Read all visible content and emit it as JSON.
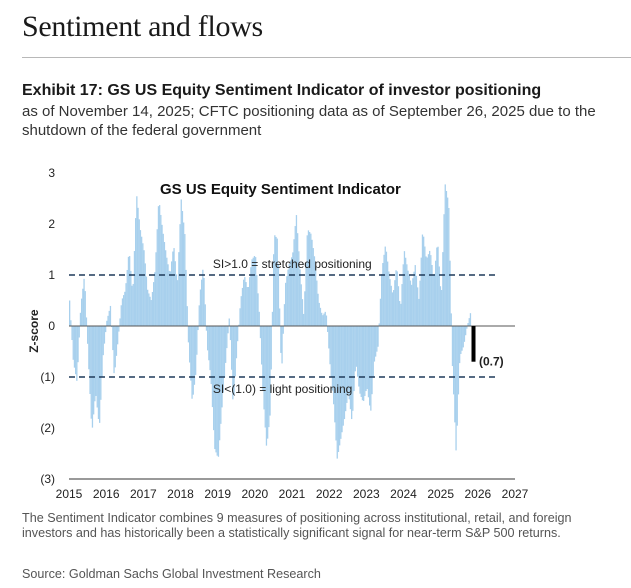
{
  "section": {
    "title": "Sentiment and flows"
  },
  "exhibit": {
    "title": "Exhibit 17: GS US Equity Sentiment Indicator of investor positioning",
    "subtitle": "as of November 14, 2025; CFTC positioning data as of September 26, 2025 due to the shutdown of the federal government"
  },
  "footnote": "The Sentiment Indicator combines 9 measures of positioning across institutional, retail, and foreign investors and has historically been a statistically significant signal for near-term S&P 500 returns.",
  "source": "Source: Goldman Sachs Global Investment Research",
  "colors": {
    "series": "#a8d0ed",
    "latest": "#000000",
    "threshold": "#1f3a5a",
    "zero": "#555555"
  },
  "chart_data": {
    "type": "bar",
    "title": "GS US Equity Sentiment Indicator",
    "ylabel": "Z-score",
    "xlabel": "",
    "xlim": [
      2015,
      2027
    ],
    "ylim": [
      -3,
      3
    ],
    "xticks": [
      "2015",
      "2016",
      "2017",
      "2018",
      "2019",
      "2020",
      "2021",
      "2022",
      "2023",
      "2024",
      "2025",
      "2026",
      "2027"
    ],
    "yticks": [
      {
        "value": 3,
        "label": "3"
      },
      {
        "value": 2,
        "label": "2"
      },
      {
        "value": 1,
        "label": "1"
      },
      {
        "value": 0,
        "label": "0"
      },
      {
        "value": -1,
        "label": "(1)"
      },
      {
        "value": -2,
        "label": "(2)"
      },
      {
        "value": -3,
        "label": "(3)"
      }
    ],
    "grid": false,
    "thresholds": [
      {
        "value": 1.0,
        "label": "SI>1.0 = stretched positioning"
      },
      {
        "value": -1.0,
        "label": "SI<(1.0) = light positioning"
      }
    ],
    "latest": {
      "x": 2025.87,
      "value": -0.7,
      "label": "(0.7)"
    },
    "series": [
      {
        "x": [
          2015.0,
          2015.1,
          2015.2,
          2015.3,
          2015.4,
          2015.5,
          2015.6,
          2015.7,
          2015.8,
          2015.9,
          2016.0,
          2016.1,
          2016.2,
          2016.3,
          2016.4,
          2016.5,
          2016.6,
          2016.7,
          2016.8,
          2016.9,
          2017.0,
          2017.1,
          2017.2,
          2017.3,
          2017.4,
          2017.5,
          2017.6,
          2017.7,
          2017.8,
          2017.9,
          2018.0,
          2018.1,
          2018.2,
          2018.3,
          2018.4,
          2018.5,
          2018.6,
          2018.7,
          2018.8,
          2018.9,
          2019.0,
          2019.1,
          2019.2,
          2019.3,
          2019.4,
          2019.5,
          2019.6,
          2019.7,
          2019.8,
          2019.9,
          2020.0,
          2020.1,
          2020.2,
          2020.3,
          2020.4,
          2020.5,
          2020.6,
          2020.7,
          2020.8,
          2020.9,
          2021.0,
          2021.1,
          2021.2,
          2021.3,
          2021.4,
          2021.5,
          2021.6,
          2021.7,
          2021.8,
          2021.9,
          2022.0,
          2022.1,
          2022.2,
          2022.3,
          2022.4,
          2022.5,
          2022.6,
          2022.7,
          2022.8,
          2022.9,
          2023.0,
          2023.1,
          2023.2,
          2023.3,
          2023.4,
          2023.5,
          2023.6,
          2023.7,
          2023.8,
          2023.9,
          2024.0,
          2024.1,
          2024.2,
          2024.3,
          2024.4,
          2024.5,
          2024.6,
          2024.7,
          2024.8,
          2024.9,
          2025.0,
          2025.1,
          2025.2,
          2025.3,
          2025.4,
          2025.5,
          2025.6,
          2025.7,
          2025.8
        ],
        "values": [
          0.5,
          -0.7,
          -1.1,
          0.4,
          1.0,
          -0.6,
          -2.1,
          -1.3,
          -2.0,
          -0.6,
          0.1,
          0.4,
          -1.0,
          -0.3,
          0.5,
          0.7,
          1.5,
          0.6,
          2.6,
          1.9,
          1.5,
          0.7,
          0.5,
          1.1,
          2.5,
          1.9,
          1.4,
          1.0,
          1.6,
          0.8,
          2.5,
          1.8,
          -0.4,
          -1.5,
          -0.9,
          0.6,
          1.2,
          -0.4,
          -1.0,
          -2.4,
          -2.6,
          -1.6,
          -0.7,
          0.2,
          -1.6,
          -0.5,
          0.5,
          1.0,
          0.7,
          1.3,
          1.4,
          0.3,
          -1.3,
          -2.4,
          -1.7,
          1.8,
          1.7,
          -1.0,
          0.8,
          1.2,
          1.4,
          2.2,
          1.1,
          0.2,
          1.9,
          1.8,
          1.3,
          0.5,
          0.2,
          0.3,
          -0.7,
          -1.5,
          -2.6,
          -2.2,
          -1.8,
          -1.3,
          -1.9,
          -0.7,
          -1.3,
          -1.5,
          -1.2,
          -1.7,
          -0.7,
          -0.4,
          1.1,
          1.6,
          1.0,
          0.6,
          1.2,
          0.3,
          1.5,
          1.1,
          0.8,
          1.2,
          0.5,
          1.9,
          1.3,
          1.5,
          0.9,
          1.7,
          0.5,
          2.8,
          2.4,
          -0.8,
          -2.5,
          -0.6,
          -0.4,
          0.0,
          0.3
        ]
      }
    ]
  }
}
